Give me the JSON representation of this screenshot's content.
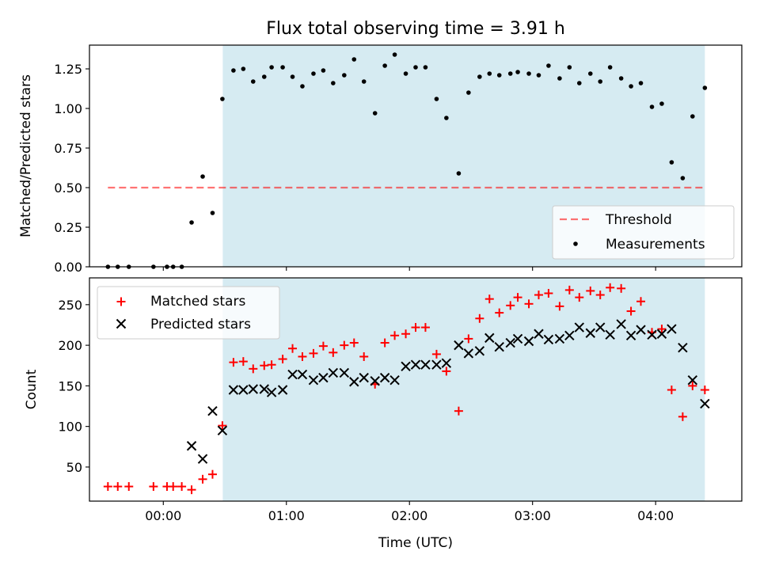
{
  "title": "Flux total observing time = 3.91 h",
  "colors": {
    "shade": "#add8e6",
    "threshold": "#ff0000",
    "matched": "#ff0000",
    "predicted": "#000000",
    "measurements": "#000000"
  },
  "chart_data": [
    {
      "type": "scatter",
      "panel": "top",
      "title": "Flux total observing time = 3.91 h",
      "xlabel": "",
      "ylabel": "Matched/Predicted stars",
      "xlim": [
        -0.6,
        4.7
      ],
      "ylim": [
        0,
        1.4
      ],
      "yticks": [
        0.0,
        0.25,
        0.5,
        0.75,
        1.0,
        1.25
      ],
      "ytick_labels": [
        "0.00",
        "0.25",
        "0.50",
        "0.75",
        "1.00",
        "1.25"
      ],
      "xticks": [
        0,
        1,
        2,
        3,
        4
      ],
      "shaded_x_range": [
        0.483,
        4.4
      ],
      "threshold": {
        "name": "Threshold",
        "y": 0.5,
        "x": [
          -0.45,
          4.4
        ]
      },
      "series": [
        {
          "name": "Measurements",
          "x": [
            -0.45,
            -0.37,
            -0.28,
            -0.08,
            0.03,
            0.08,
            0.15,
            0.23,
            0.32,
            0.4,
            0.48,
            0.57,
            0.65,
            0.73,
            0.82,
            0.88,
            0.97,
            1.05,
            1.13,
            1.22,
            1.3,
            1.38,
            1.47,
            1.55,
            1.63,
            1.72,
            1.8,
            1.88,
            1.97,
            2.05,
            2.13,
            2.22,
            2.3,
            2.4,
            2.48,
            2.57,
            2.65,
            2.73,
            2.82,
            2.88,
            2.97,
            3.05,
            3.13,
            3.22,
            3.3,
            3.38,
            3.47,
            3.55,
            3.63,
            3.72,
            3.8,
            3.88,
            3.97,
            4.05,
            4.13,
            4.22,
            4.3,
            4.4
          ],
          "y": [
            0.0,
            0.0,
            0.0,
            0.0,
            0.0,
            0.0,
            0.0,
            0.28,
            0.57,
            0.34,
            1.06,
            1.24,
            1.25,
            1.17,
            1.2,
            1.26,
            1.26,
            1.2,
            1.14,
            1.22,
            1.24,
            1.16,
            1.21,
            1.31,
            1.17,
            0.97,
            1.27,
            1.34,
            1.22,
            1.26,
            1.26,
            1.06,
            0.94,
            0.59,
            1.1,
            1.2,
            1.22,
            1.21,
            1.22,
            1.23,
            1.22,
            1.21,
            1.27,
            1.19,
            1.26,
            1.16,
            1.22,
            1.17,
            1.26,
            1.19,
            1.14,
            1.16,
            1.01,
            1.03,
            0.66,
            0.56,
            0.95,
            1.13
          ]
        }
      ],
      "legend": {
        "position": "lower right",
        "entries": [
          "Threshold",
          "Measurements"
        ]
      }
    },
    {
      "type": "scatter",
      "panel": "bottom",
      "xlabel": "Time (UTC)",
      "ylabel": "Count",
      "xlim": [
        -0.6,
        4.7
      ],
      "ylim": [
        8,
        283
      ],
      "yticks": [
        50,
        100,
        150,
        200,
        250
      ],
      "ytick_labels": [
        "50",
        "100",
        "150",
        "200",
        "250"
      ],
      "xticks": [
        0,
        1,
        2,
        3,
        4
      ],
      "xtick_labels": [
        "00:00",
        "01:00",
        "02:00",
        "03:00",
        "04:00"
      ],
      "shaded_x_range": [
        0.483,
        4.4
      ],
      "series": [
        {
          "name": "Matched stars",
          "marker": "+",
          "x": [
            -0.45,
            -0.37,
            -0.28,
            -0.08,
            0.03,
            0.08,
            0.15,
            0.23,
            0.32,
            0.4,
            0.48,
            0.57,
            0.65,
            0.73,
            0.82,
            0.88,
            0.97,
            1.05,
            1.13,
            1.22,
            1.3,
            1.38,
            1.47,
            1.55,
            1.63,
            1.72,
            1.8,
            1.88,
            1.97,
            2.05,
            2.13,
            2.22,
            2.3,
            2.4,
            2.48,
            2.57,
            2.65,
            2.73,
            2.82,
            2.88,
            2.97,
            3.05,
            3.13,
            3.22,
            3.3,
            3.38,
            3.47,
            3.55,
            3.63,
            3.72,
            3.8,
            3.88,
            3.97,
            4.05,
            4.13,
            4.22,
            4.3,
            4.4
          ],
          "y": [
            26,
            26,
            26,
            26,
            26,
            26,
            26,
            22,
            35,
            41,
            101,
            179,
            180,
            171,
            175,
            176,
            183,
            196,
            186,
            190,
            199,
            191,
            200,
            203,
            186,
            152,
            203,
            212,
            214,
            222,
            222,
            189,
            168,
            119,
            208,
            233,
            257,
            240,
            249,
            259,
            251,
            262,
            264,
            248,
            268,
            259,
            267,
            262,
            271,
            270,
            242,
            254,
            216,
            220,
            145,
            112,
            150,
            145
          ]
        },
        {
          "name": "Predicted stars",
          "marker": "x",
          "x": [
            0.23,
            0.32,
            0.4,
            0.48,
            0.57,
            0.65,
            0.73,
            0.82,
            0.88,
            0.97,
            1.05,
            1.13,
            1.22,
            1.3,
            1.38,
            1.47,
            1.55,
            1.63,
            1.72,
            1.8,
            1.88,
            1.97,
            2.05,
            2.13,
            2.22,
            2.3,
            2.4,
            2.48,
            2.57,
            2.65,
            2.73,
            2.82,
            2.88,
            2.97,
            3.05,
            3.13,
            3.22,
            3.3,
            3.38,
            3.47,
            3.55,
            3.63,
            3.72,
            3.8,
            3.88,
            3.97,
            4.05,
            4.13,
            4.22,
            4.3,
            4.4
          ],
          "y": [
            76,
            60,
            119,
            95,
            145,
            145,
            146,
            146,
            142,
            145,
            164,
            164,
            157,
            160,
            166,
            166,
            155,
            160,
            156,
            160,
            157,
            174,
            176,
            176,
            176,
            178,
            200,
            190,
            193,
            209,
            198,
            203,
            208,
            205,
            214,
            207,
            208,
            212,
            222,
            215,
            222,
            213,
            226,
            212,
            219,
            213,
            214,
            220,
            197,
            157,
            128
          ]
        }
      ],
      "legend": {
        "position": "upper left",
        "entries": [
          "Matched stars",
          "Predicted stars"
        ]
      }
    }
  ]
}
